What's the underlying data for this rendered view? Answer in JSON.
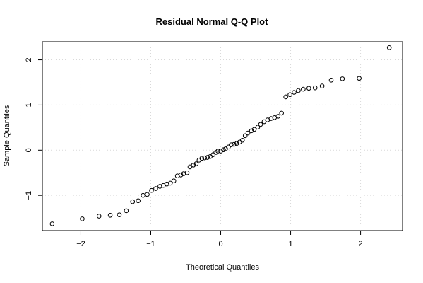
{
  "chart_data": {
    "type": "scatter",
    "title": "Residual Normal Q-Q Plot",
    "xlabel": "Theoretical Quantiles",
    "ylabel": "Sample Quantiles",
    "xlim": [
      -2.55,
      2.6
    ],
    "ylim": [
      -1.78,
      2.4
    ],
    "xticks": [
      -2,
      -1,
      0,
      1,
      2
    ],
    "xtick_labels": [
      "−2",
      "−1",
      "0",
      "1",
      "2"
    ],
    "yticks": [
      -1,
      0,
      1,
      2
    ],
    "ytick_labels": [
      "−1",
      "0",
      "1",
      "2"
    ],
    "grid": true,
    "points": {
      "x": [
        -2.41,
        -1.98,
        -1.74,
        -1.58,
        -1.45,
        -1.35,
        -1.26,
        -1.18,
        -1.11,
        -1.05,
        -0.99,
        -0.93,
        -0.87,
        -0.82,
        -0.77,
        -0.72,
        -0.67,
        -0.62,
        -0.57,
        -0.53,
        -0.48,
        -0.44,
        -0.39,
        -0.35,
        -0.31,
        -0.27,
        -0.23,
        -0.19,
        -0.15,
        -0.11,
        -0.07,
        -0.04,
        0.0,
        0.04,
        0.07,
        0.11,
        0.15,
        0.19,
        0.23,
        0.27,
        0.31,
        0.35,
        0.39,
        0.44,
        0.48,
        0.53,
        0.57,
        0.62,
        0.67,
        0.72,
        0.77,
        0.82,
        0.87,
        0.93,
        0.99,
        1.05,
        1.11,
        1.18,
        1.26,
        1.35,
        1.45,
        1.58,
        1.74,
        1.98,
        2.41
      ],
      "y": [
        -1.63,
        -1.52,
        -1.46,
        -1.44,
        -1.43,
        -1.34,
        -1.14,
        -1.12,
        -1.0,
        -0.98,
        -0.89,
        -0.85,
        -0.8,
        -0.78,
        -0.75,
        -0.73,
        -0.68,
        -0.57,
        -0.55,
        -0.52,
        -0.5,
        -0.37,
        -0.33,
        -0.3,
        -0.22,
        -0.18,
        -0.17,
        -0.16,
        -0.14,
        -0.1,
        -0.05,
        -0.02,
        -0.02,
        0.01,
        0.03,
        0.07,
        0.12,
        0.13,
        0.15,
        0.18,
        0.22,
        0.32,
        0.38,
        0.43,
        0.46,
        0.51,
        0.57,
        0.63,
        0.67,
        0.7,
        0.72,
        0.75,
        0.82,
        1.18,
        1.23,
        1.28,
        1.32,
        1.35,
        1.37,
        1.38,
        1.42,
        1.55,
        1.58,
        1.59,
        2.27
      ]
    }
  }
}
